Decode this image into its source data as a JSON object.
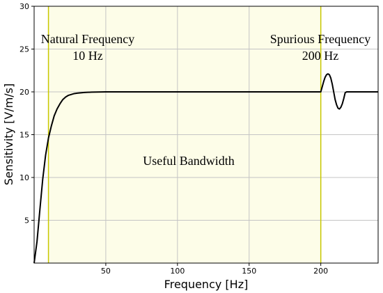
{
  "chart_data": {
    "type": "line",
    "xlabel": "Frequency [Hz]",
    "ylabel": "Sensitivity [V/m/s]",
    "xlim": [
      0,
      240
    ],
    "ylim": [
      0,
      30
    ],
    "xticks": [
      50,
      100,
      150,
      200
    ],
    "yticks": [
      5,
      10,
      15,
      20,
      25,
      30
    ],
    "grid": true,
    "shaded_region": {
      "from": 10,
      "to": 200,
      "color": "#fdfde8"
    },
    "vertical_lines": [
      {
        "x": 10,
        "color": "#c8c800"
      },
      {
        "x": 200,
        "color": "#c8c800"
      }
    ],
    "series": [
      {
        "color": "#000000",
        "x": [
          0,
          2,
          4,
          6,
          8,
          10,
          12,
          14,
          16,
          18,
          20,
          22,
          24,
          26,
          28,
          30,
          35,
          40,
          50,
          100,
          150,
          200,
          201,
          202,
          203,
          204,
          205,
          206,
          207,
          208,
          209,
          210,
          211,
          212,
          213,
          214,
          215,
          216,
          217,
          218,
          219,
          220,
          221,
          225,
          240
        ],
        "y": [
          0,
          2.5,
          6.2,
          9.8,
          12.6,
          14.6,
          16.0,
          17.2,
          18.0,
          18.6,
          19.1,
          19.4,
          19.6,
          19.7,
          19.8,
          19.85,
          19.93,
          19.97,
          20.0,
          20.0,
          20.0,
          20.0,
          20.6,
          21.2,
          21.7,
          22.0,
          22.1,
          22.0,
          21.6,
          20.9,
          20.0,
          19.1,
          18.5,
          18.1,
          18.0,
          18.2,
          18.6,
          19.2,
          19.9,
          20.0,
          20.0,
          20.0,
          20.0,
          20.0,
          20.0
        ]
      }
    ],
    "annotations": [
      {
        "line1": "Natural Frequency",
        "line2": "10 Hz"
      },
      {
        "line1": "Spurious Frequency",
        "line2": "200 Hz"
      },
      {
        "line1": "Useful Bandwidth"
      }
    ]
  }
}
